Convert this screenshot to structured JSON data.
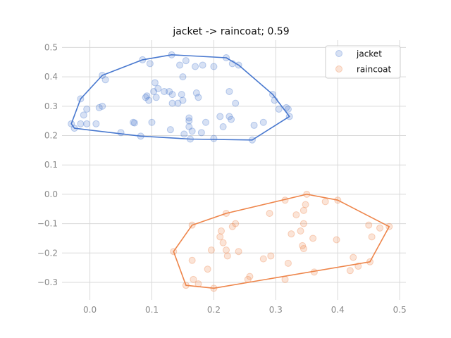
{
  "chart_data": {
    "type": "scatter",
    "title": "jacket -> raincoat; 0.59",
    "xlabel": "",
    "ylabel": "",
    "xlim": [
      -0.045,
      0.51
    ],
    "ylim": [
      -0.36,
      0.525
    ],
    "x_ticks": [
      0.0,
      0.1,
      0.2,
      0.3,
      0.4,
      0.5
    ],
    "x_tick_labels": [
      "0.0",
      "0.1",
      "0.2",
      "0.3",
      "0.4",
      "0.5"
    ],
    "y_ticks": [
      -0.3,
      -0.2,
      -0.1,
      0.0,
      0.1,
      0.2,
      0.3,
      0.4,
      0.5
    ],
    "y_tick_labels": [
      "−0.3",
      "−0.2",
      "−0.1",
      "0.0",
      "0.1",
      "0.2",
      "0.3",
      "0.4",
      "0.5"
    ],
    "grid": true,
    "legend_position": "top-right",
    "series": [
      {
        "name": "jacket",
        "color": "#4878cf",
        "points": [
          [
            -0.03,
            0.24
          ],
          [
            -0.025,
            0.225
          ],
          [
            -0.015,
            0.24
          ],
          [
            -0.015,
            0.325
          ],
          [
            -0.01,
            0.27
          ],
          [
            -0.005,
            0.29
          ],
          [
            -0.005,
            0.24
          ],
          [
            0.01,
            0.24
          ],
          [
            0.015,
            0.295
          ],
          [
            0.02,
            0.3
          ],
          [
            0.02,
            0.405
          ],
          [
            0.025,
            0.39
          ],
          [
            0.05,
            0.21
          ],
          [
            0.07,
            0.245
          ],
          [
            0.072,
            0.243
          ],
          [
            0.082,
            0.198
          ],
          [
            0.085,
            0.458
          ],
          [
            0.09,
            0.33
          ],
          [
            0.092,
            0.335
          ],
          [
            0.095,
            0.32
          ],
          [
            0.097,
            0.445
          ],
          [
            0.1,
            0.245
          ],
          [
            0.103,
            0.35
          ],
          [
            0.105,
            0.38
          ],
          [
            0.107,
            0.33
          ],
          [
            0.11,
            0.36
          ],
          [
            0.12,
            0.35
          ],
          [
            0.128,
            0.35
          ],
          [
            0.13,
            0.22
          ],
          [
            0.132,
            0.475
          ],
          [
            0.133,
            0.34
          ],
          [
            0.133,
            0.31
          ],
          [
            0.142,
            0.31
          ],
          [
            0.145,
            0.44
          ],
          [
            0.148,
            0.34
          ],
          [
            0.15,
            0.32
          ],
          [
            0.15,
            0.4
          ],
          [
            0.152,
            0.205
          ],
          [
            0.155,
            0.455
          ],
          [
            0.16,
            0.26
          ],
          [
            0.16,
            0.25
          ],
          [
            0.16,
            0.23
          ],
          [
            0.162,
            0.188
          ],
          [
            0.165,
            0.215
          ],
          [
            0.17,
            0.435
          ],
          [
            0.172,
            0.345
          ],
          [
            0.175,
            0.33
          ],
          [
            0.18,
            0.21
          ],
          [
            0.182,
            0.44
          ],
          [
            0.187,
            0.245
          ],
          [
            0.2,
            0.19
          ],
          [
            0.2,
            0.435
          ],
          [
            0.21,
            0.265
          ],
          [
            0.215,
            0.23
          ],
          [
            0.22,
            0.465
          ],
          [
            0.225,
            0.35
          ],
          [
            0.225,
            0.265
          ],
          [
            0.228,
            0.255
          ],
          [
            0.23,
            0.445
          ],
          [
            0.235,
            0.31
          ],
          [
            0.24,
            0.44
          ],
          [
            0.262,
            0.185
          ],
          [
            0.265,
            0.235
          ],
          [
            0.28,
            0.245
          ],
          [
            0.295,
            0.34
          ],
          [
            0.298,
            0.32
          ],
          [
            0.305,
            0.29
          ],
          [
            0.317,
            0.295
          ],
          [
            0.32,
            0.29
          ],
          [
            0.322,
            0.265
          ]
        ],
        "hull": [
          [
            -0.03,
            0.24
          ],
          [
            -0.015,
            0.325
          ],
          [
            0.02,
            0.405
          ],
          [
            0.085,
            0.458
          ],
          [
            0.132,
            0.475
          ],
          [
            0.22,
            0.465
          ],
          [
            0.24,
            0.44
          ],
          [
            0.295,
            0.34
          ],
          [
            0.322,
            0.265
          ],
          [
            0.262,
            0.185
          ],
          [
            0.162,
            0.188
          ],
          [
            0.082,
            0.198
          ],
          [
            -0.025,
            0.225
          ]
        ]
      },
      {
        "name": "raincoat",
        "color": "#ee854a",
        "points": [
          [
            0.135,
            -0.195
          ],
          [
            0.155,
            -0.31
          ],
          [
            0.165,
            -0.105
          ],
          [
            0.165,
            -0.225
          ],
          [
            0.167,
            -0.29
          ],
          [
            0.175,
            -0.305
          ],
          [
            0.19,
            -0.255
          ],
          [
            0.196,
            -0.19
          ],
          [
            0.2,
            -0.32
          ],
          [
            0.21,
            -0.145
          ],
          [
            0.212,
            -0.125
          ],
          [
            0.215,
            -0.165
          ],
          [
            0.22,
            -0.065
          ],
          [
            0.22,
            -0.19
          ],
          [
            0.222,
            -0.21
          ],
          [
            0.23,
            -0.11
          ],
          [
            0.235,
            -0.1
          ],
          [
            0.24,
            -0.195
          ],
          [
            0.255,
            -0.29
          ],
          [
            0.258,
            -0.28
          ],
          [
            0.28,
            -0.22
          ],
          [
            0.29,
            -0.065
          ],
          [
            0.292,
            -0.21
          ],
          [
            0.315,
            -0.02
          ],
          [
            0.315,
            -0.29
          ],
          [
            0.32,
            -0.235
          ],
          [
            0.325,
            -0.135
          ],
          [
            0.333,
            -0.07
          ],
          [
            0.34,
            -0.125
          ],
          [
            0.343,
            -0.175
          ],
          [
            0.345,
            -0.185
          ],
          [
            0.345,
            -0.1
          ],
          [
            0.345,
            -0.055
          ],
          [
            0.348,
            -0.035
          ],
          [
            0.35,
            0.0
          ],
          [
            0.36,
            -0.15
          ],
          [
            0.362,
            -0.265
          ],
          [
            0.38,
            -0.025
          ],
          [
            0.398,
            -0.155
          ],
          [
            0.4,
            -0.02
          ],
          [
            0.42,
            -0.26
          ],
          [
            0.425,
            -0.215
          ],
          [
            0.433,
            -0.245
          ],
          [
            0.45,
            -0.105
          ],
          [
            0.452,
            -0.23
          ],
          [
            0.455,
            -0.145
          ],
          [
            0.468,
            -0.115
          ],
          [
            0.483,
            -0.11
          ]
        ],
        "hull": [
          [
            0.135,
            -0.195
          ],
          [
            0.165,
            -0.105
          ],
          [
            0.22,
            -0.065
          ],
          [
            0.35,
            0.0
          ],
          [
            0.4,
            -0.02
          ],
          [
            0.483,
            -0.11
          ],
          [
            0.452,
            -0.23
          ],
          [
            0.2,
            -0.32
          ],
          [
            0.155,
            -0.31
          ]
        ]
      }
    ]
  }
}
